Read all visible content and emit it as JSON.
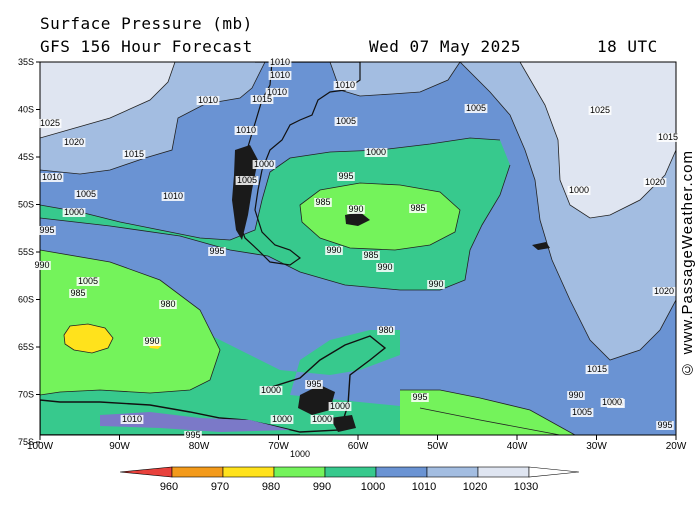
{
  "header": {
    "line1": "Surface Pressure (mb)",
    "line2": "GFS 156 Hour Forecast",
    "date": "Wed 07 May 2025",
    "time": "18 UTC"
  },
  "credit": "© www.PassageWeather.com",
  "lat_labels": [
    "35S",
    "40S",
    "45S",
    "50S",
    "55S",
    "60S",
    "65S",
    "70S",
    "75S"
  ],
  "lon_labels": [
    "100W",
    "90W",
    "80W",
    "70W",
    "60W",
    "50W",
    "40W",
    "30W",
    "20W"
  ],
  "colorbar": {
    "ticks": [
      "960",
      "970",
      "980",
      "990",
      "1000",
      "1010",
      "1020",
      "1030"
    ],
    "colors": [
      "#e8413c",
      "#f39a1b",
      "#ffe21c",
      "#74f35b",
      "#37c98d",
      "#6a93d3",
      "#a3bde1",
      "#dfe5f1"
    ]
  },
  "isobar_labels": [
    "1010",
    "1010",
    "1010",
    "1010",
    "1015",
    "1010",
    "1010",
    "1005",
    "1005",
    "1025",
    "1025",
    "1020",
    "1015",
    "1010",
    "1005",
    "1000",
    "995",
    "990",
    "1010",
    "1005",
    "1000",
    "995",
    "990",
    "985",
    "985",
    "990",
    "985",
    "990",
    "990",
    "995",
    "1000",
    "1005",
    "985",
    "980",
    "990",
    "980",
    "1000",
    "1020",
    "1015",
    "1020",
    "1015",
    "1010",
    "995",
    "1000",
    "995",
    "1000",
    "1000",
    "1000",
    "1000",
    "995",
    "995",
    "990",
    "1005",
    "1000",
    "995",
    "99"
  ],
  "chart_data": {
    "type": "heatmap",
    "title": "Surface Pressure (mb)",
    "subtitle": "GFS 156 Hour Forecast",
    "valid_time": "Wed 07 May 2025 18 UTC",
    "lat_range": [
      "35S",
      "77S"
    ],
    "lon_range": [
      "100W",
      "20W"
    ],
    "pressure_levels_mb": [
      960,
      970,
      980,
      990,
      1000,
      1010,
      1020,
      1030
    ],
    "lows": [
      {
        "location": "east of Tierra del Fuego",
        "min_label": 985
      },
      {
        "location": "west, near 60S 95W",
        "min_label": 980
      }
    ],
    "highs": [
      {
        "location": "northeast, near 40S 25W",
        "label": 1025
      }
    ]
  }
}
